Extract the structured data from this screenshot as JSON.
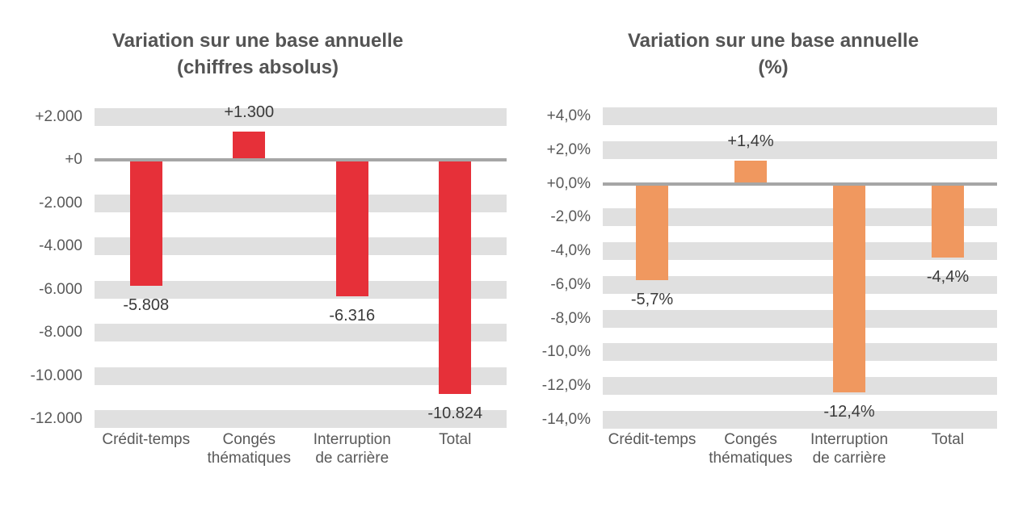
{
  "colors": {
    "background": "#FFFFFF",
    "bar_red": "#E63039",
    "bar_orange": "#F0985F",
    "gridline_stripe": "#E0E0E0",
    "zero_axis_line": "#A6A6A6",
    "title_text": "#545454",
    "axis_text": "#595959",
    "value_label_text": "#3A3A3A"
  },
  "chart_data": [
    {
      "type": "bar",
      "title": "Variation sur une base annuelle (chiffres absolus)",
      "title_lines": "Variation sur une base annuelle\n(chiffres absolus)",
      "categories": [
        "Crédit-temps",
        "Congés thématiques",
        "Interruption de carrière",
        "Total"
      ],
      "category_labels": [
        "Crédit-temps",
        "Congés\nthématiques",
        "Interruption\nde carrière",
        "Total"
      ],
      "values": [
        -5808,
        1300,
        -6316,
        -10824
      ],
      "value_labels": [
        "-5.808",
        "+1.300",
        "-6.316",
        "-10.824"
      ],
      "bar_color": "#E63039",
      "xlabel": "",
      "ylabel": "",
      "ylim": [
        -12400,
        2400
      ],
      "yticks": [
        2000,
        0,
        -2000,
        -4000,
        -6000,
        -8000,
        -10000,
        -12000
      ],
      "ytick_labels": [
        "+2.000",
        "+0",
        "-2.000",
        "-4.000",
        "-6.000",
        "-8.000",
        "-10.000",
        "-12.000"
      ],
      "grid": "horizontal-striped-bands",
      "legend": "none"
    },
    {
      "type": "bar",
      "title": "Variation sur une base annuelle (%)",
      "title_lines": "Variation sur une base annuelle\n(%)",
      "categories": [
        "Crédit-temps",
        "Congés thématiques",
        "Interruption de carrière",
        "Total"
      ],
      "category_labels": [
        "Crédit-temps",
        "Congés\nthématiques",
        "Interruption\nde carrière",
        "Total"
      ],
      "values": [
        -5.7,
        1.4,
        -12.4,
        -4.4
      ],
      "value_labels": [
        "-5,7%",
        "+1,4%",
        "-12,4%",
        "-4,4%"
      ],
      "bar_color": "#F0985F",
      "xlabel": "",
      "ylabel": "",
      "ylim": [
        -14.5,
        4.5
      ],
      "yticks": [
        4,
        2,
        0,
        -2,
        -4,
        -6,
        -8,
        -10,
        -12,
        -14
      ],
      "ytick_labels": [
        "+4,0%",
        "+2,0%",
        "+0,0%",
        "-2,0%",
        "-4,0%",
        "-6,0%",
        "-8,0%",
        "-10,0%",
        "-12,0%",
        "-14,0%"
      ],
      "grid": "horizontal-striped-bands",
      "legend": "none"
    }
  ]
}
